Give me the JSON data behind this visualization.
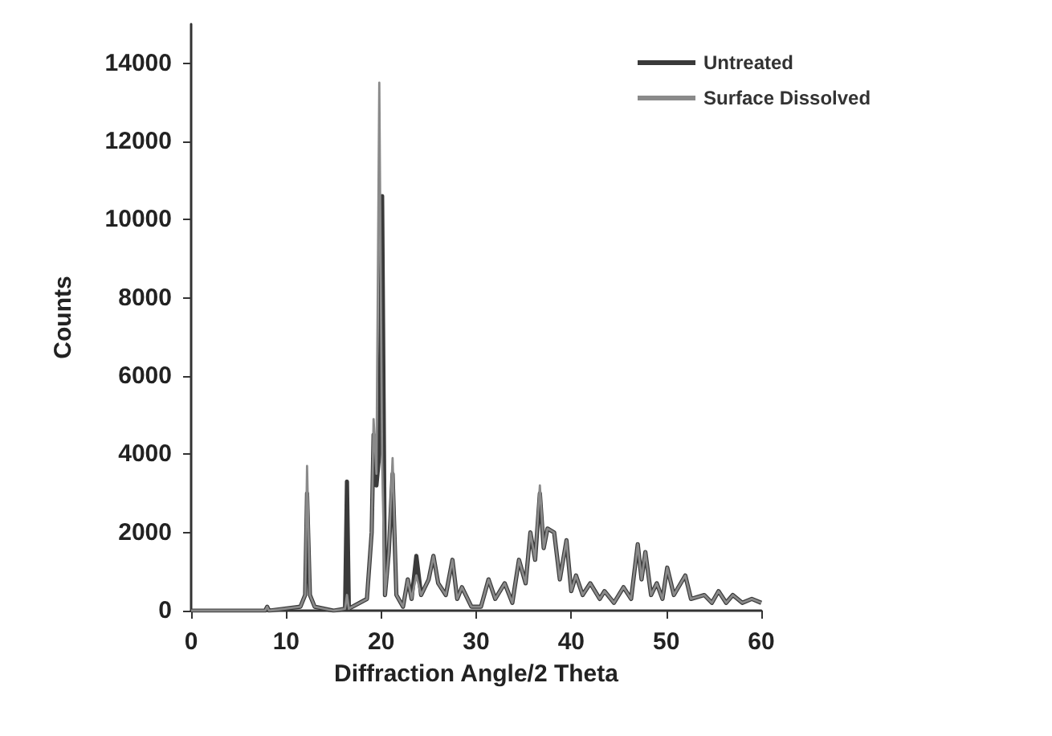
{
  "chart_data": {
    "type": "line",
    "xlabel": "Diffraction Angle/2 Theta",
    "ylabel": "Counts",
    "x": [
      0,
      5,
      7.8,
      8,
      8.2,
      11.5,
      12,
      12.2,
      12.5,
      13,
      15,
      16.2,
      16.4,
      16.6,
      18.5,
      19,
      19.2,
      19.5,
      19.8,
      20.1,
      20.4,
      20.8,
      21.2,
      21.6,
      22.3,
      22.8,
      23.2,
      23.7,
      24.2,
      25,
      25.5,
      26,
      26.8,
      27.5,
      28,
      28.5,
      29.5,
      30.5,
      31.3,
      32,
      33,
      33.8,
      34.5,
      35.2,
      35.7,
      36.2,
      36.7,
      37.1,
      37.5,
      38.2,
      38.8,
      39.5,
      40,
      40.5,
      41.2,
      42,
      43,
      43.5,
      44.5,
      45.5,
      46.3,
      47,
      47.4,
      47.8,
      48.4,
      49,
      49.6,
      50.1,
      50.8,
      52,
      52.6,
      54,
      54.8,
      55.5,
      56.3,
      57,
      58,
      59,
      60
    ],
    "series": [
      {
        "name": "Untreated",
        "color": "#3a3a3a",
        "values": [
          0,
          0,
          0,
          100,
          0,
          100,
          400,
          3000,
          400,
          100,
          0,
          50,
          3300,
          50,
          300,
          2000,
          4500,
          3200,
          4000,
          10600,
          400,
          1500,
          3500,
          400,
          100,
          800,
          300,
          1400,
          400,
          800,
          1400,
          700,
          400,
          1300,
          300,
          600,
          100,
          100,
          800,
          300,
          700,
          200,
          1300,
          700,
          2000,
          1300,
          3000,
          1600,
          2100,
          2000,
          800,
          1800,
          500,
          900,
          400,
          700,
          300,
          500,
          200,
          600,
          300,
          1700,
          800,
          1500,
          400,
          700,
          300,
          1100,
          400,
          900,
          300,
          400,
          200,
          500,
          200,
          400,
          200,
          300,
          200
        ]
      },
      {
        "name": "Surface Dissolved",
        "color": "#8a8a8a",
        "values": [
          0,
          0,
          0,
          100,
          0,
          100,
          400,
          3700,
          400,
          100,
          0,
          50,
          400,
          50,
          300,
          2000,
          4900,
          3500,
          13500,
          3800,
          400,
          1500,
          3900,
          400,
          100,
          800,
          300,
          900,
          400,
          800,
          1400,
          700,
          400,
          1300,
          300,
          600,
          100,
          100,
          800,
          300,
          700,
          200,
          1300,
          700,
          2000,
          1300,
          3200,
          1600,
          2100,
          2000,
          800,
          1800,
          500,
          900,
          400,
          700,
          300,
          500,
          200,
          600,
          300,
          1700,
          800,
          1500,
          400,
          700,
          300,
          1100,
          400,
          900,
          300,
          400,
          200,
          500,
          200,
          400,
          200,
          300,
          200
        ]
      }
    ],
    "xlim": [
      0,
      60
    ],
    "xticks": [
      0,
      10,
      20,
      30,
      40,
      50,
      60
    ],
    "ylim": [
      0,
      15000
    ],
    "yticks": [
      0,
      2000,
      4000,
      6000,
      8000,
      10000,
      12000,
      14000
    ],
    "grid": false,
    "legend": "top right",
    "marker": "none",
    "line_style": "solid"
  }
}
